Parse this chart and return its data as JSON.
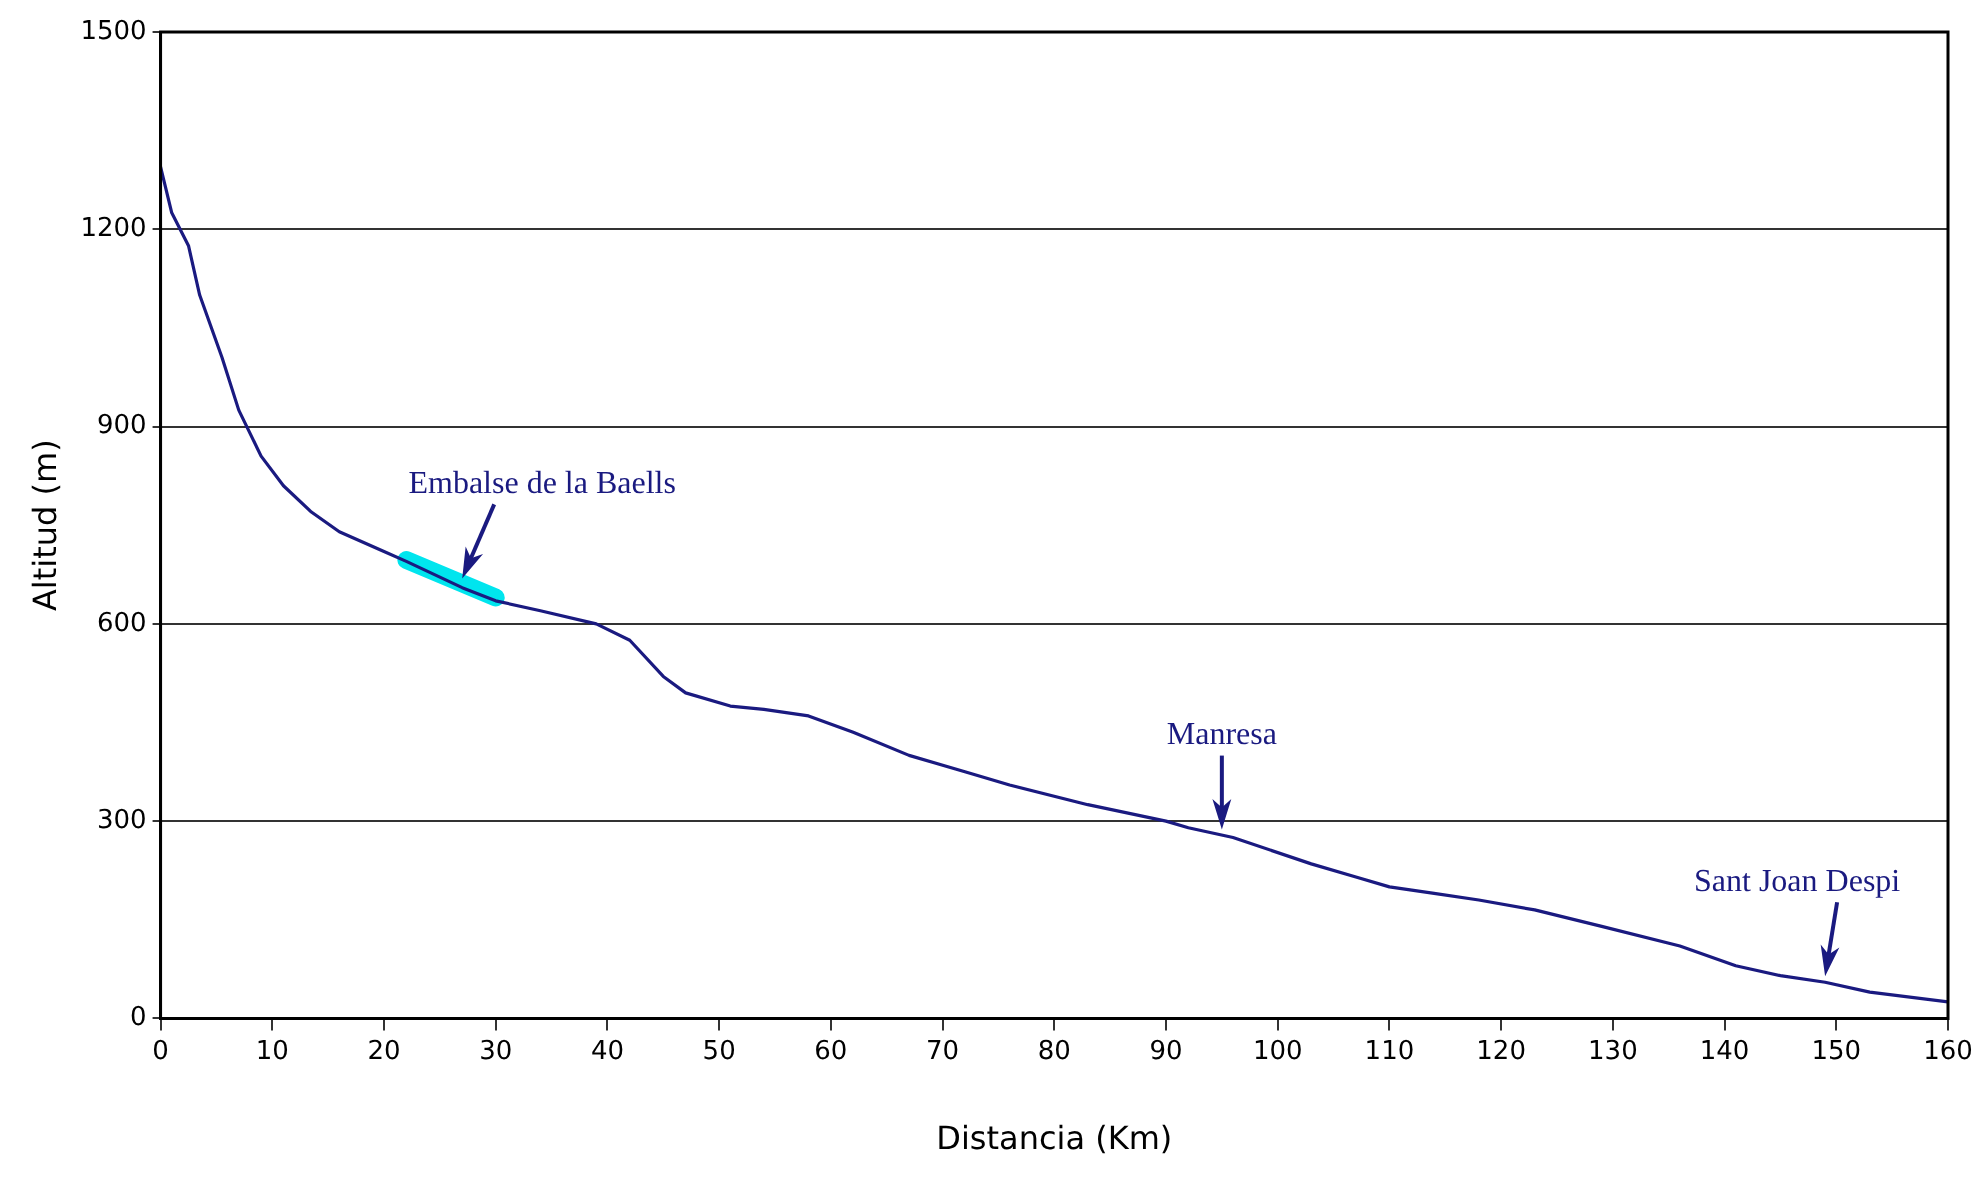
{
  "chart_data": {
    "type": "line",
    "xlabel": "Distancia (Km)",
    "ylabel": "Altitud (m)",
    "xlim": [
      0,
      160
    ],
    "xticks": [
      0,
      10,
      20,
      30,
      40,
      50,
      60,
      70,
      80,
      90,
      100,
      110,
      120,
      130,
      140,
      150,
      160
    ],
    "ylim": [
      0,
      1500
    ],
    "yticks": [
      0,
      300,
      600,
      900,
      1200,
      1500
    ],
    "grid": "y",
    "legend": false,
    "marker": "none",
    "line_style": "solid",
    "series": [
      {
        "color": "#1a1a80",
        "x": [
          0,
          1,
          2.5,
          3.5,
          5.5,
          7,
          9,
          11,
          13.5,
          16,
          20,
          22,
          27,
          30,
          34,
          39,
          42,
          45,
          47,
          51,
          54,
          58,
          62,
          67,
          72,
          76,
          83,
          90,
          92,
          96,
          103,
          107,
          110,
          114,
          118,
          123,
          129,
          136,
          141,
          145,
          149,
          153,
          160
        ],
        "values": [
          1295,
          1225,
          1175,
          1100,
          1005,
          925,
          855,
          810,
          770,
          740,
          710,
          695,
          655,
          635,
          620,
          600,
          575,
          520,
          495,
          475,
          470,
          460,
          435,
          400,
          375,
          355,
          325,
          300,
          290,
          275,
          235,
          215,
          200,
          190,
          180,
          165,
          140,
          110,
          80,
          65,
          55,
          40,
          25
        ]
      },
      {
        "color": "#00e5ee",
        "x": [
          22,
          30
        ],
        "values": [
          697,
          640
        ]
      }
    ],
    "annotations": [
      {
        "text": "Embalse de la Baells",
        "x": 27,
        "y": 660
      },
      {
        "text": "Manresa",
        "x": 95,
        "y": 278
      },
      {
        "text": "Sant Joan Despi",
        "x": 149,
        "y": 55
      }
    ]
  }
}
